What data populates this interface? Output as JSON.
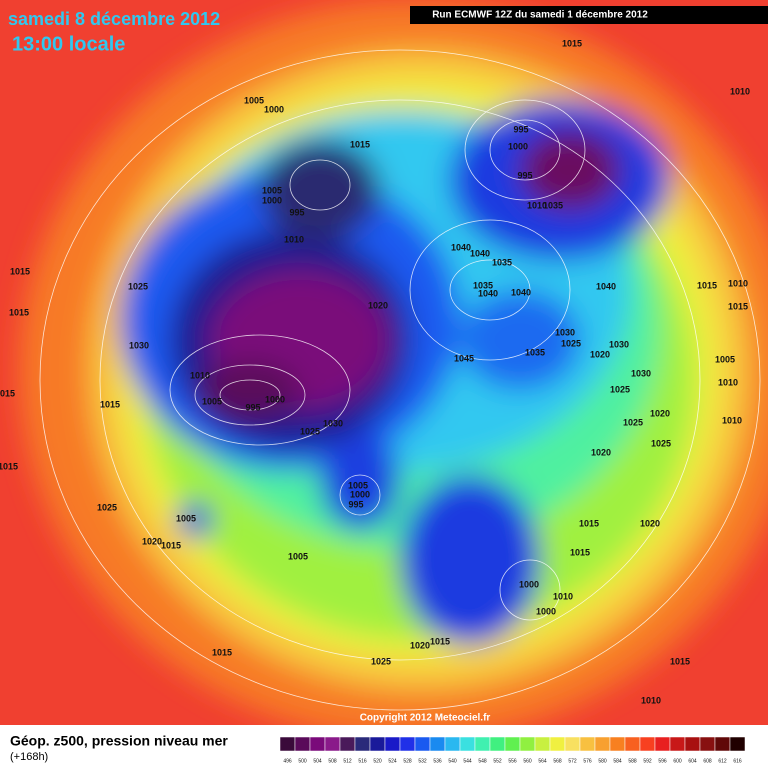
{
  "header": {
    "title": "samedi 8 décembre 2012",
    "subtitle": "13:00 locale",
    "run": "Run ECMWF 12Z du samedi 1 décembre 2012"
  },
  "footer": {
    "label": "Géop. z500, pression niveau mer",
    "lead": "(+168h)",
    "copyright": "Copyright 2012 Meteociel.fr"
  },
  "colorbar": {
    "values": [
      496,
      500,
      504,
      508,
      512,
      516,
      520,
      524,
      528,
      532,
      536,
      540,
      544,
      548,
      552,
      556,
      560,
      564,
      568,
      572,
      576,
      580,
      584,
      588,
      592,
      596,
      600,
      604,
      608,
      612,
      616
    ],
    "colors": [
      "#3a0a3a",
      "#5a0a5a",
      "#7a0a7a",
      "#8a1a8a",
      "#4a1a5a",
      "#2a2a7a",
      "#1a1a9a",
      "#1a1ac8",
      "#2030e8",
      "#1a5af0",
      "#1a8af0",
      "#2ab8f0",
      "#3ae0e0",
      "#40f0b0",
      "#40f080",
      "#60f050",
      "#90f040",
      "#c8f040",
      "#f0f040",
      "#f8e060",
      "#f8c040",
      "#f8a030",
      "#f88020",
      "#f86020",
      "#f84020",
      "#e82020",
      "#c81818",
      "#a81010",
      "#881010",
      "#600808",
      "#200000"
    ]
  },
  "pressure_labels": [
    1015,
    1005,
    1000,
    1015,
    995,
    1000,
    995,
    1005,
    1000,
    995,
    1010,
    1010,
    1035,
    1040,
    1040,
    1035,
    1015,
    1025,
    1020,
    1035,
    1040,
    1040,
    1040,
    1015,
    1030,
    1045,
    1035,
    1030,
    1025,
    1020,
    1030,
    1010,
    1005,
    995,
    1000,
    1015,
    1025,
    1030,
    1030,
    1025,
    1020,
    1025,
    1025,
    1020,
    1005,
    1000,
    995,
    1025,
    1005,
    1015,
    1020,
    1020,
    1015,
    1015,
    1005,
    1000,
    1010,
    1000,
    1015,
    1020,
    1015,
    1025,
    1015,
    1010,
    1015,
    1010,
    1015,
    1005,
    1010,
    1010,
    1015,
    1010,
    1015
  ]
}
